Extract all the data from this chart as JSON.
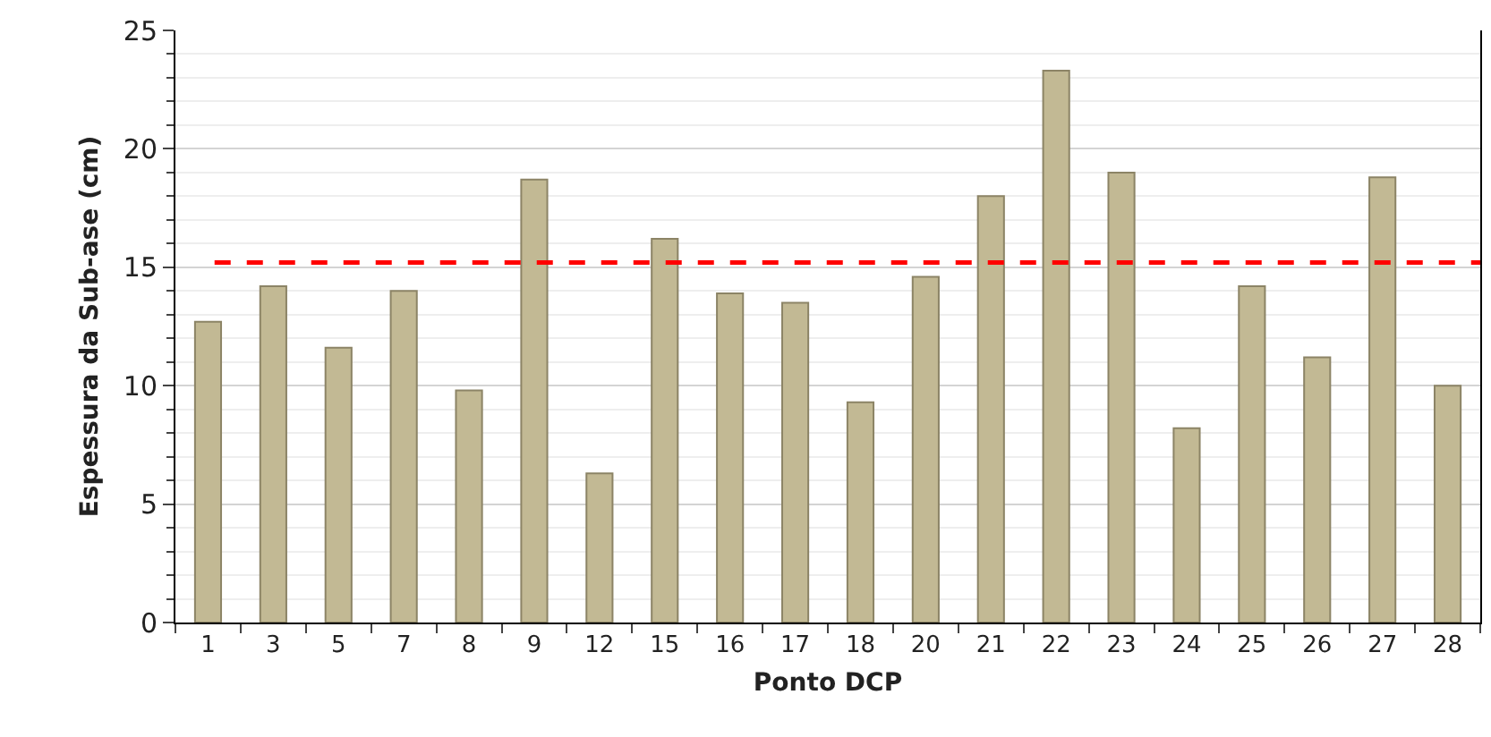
{
  "chart_data": {
    "type": "bar",
    "xlabel": "Ponto DCP",
    "ylabel": "Espessura da Sub-ase (cm)",
    "categories": [
      "1",
      "3",
      "5",
      "7",
      "8",
      "9",
      "12",
      "15",
      "16",
      "17",
      "18",
      "20",
      "21",
      "22",
      "23",
      "24",
      "25",
      "26",
      "27",
      "28"
    ],
    "values": [
      12.7,
      14.2,
      11.6,
      14.0,
      9.8,
      18.7,
      6.3,
      16.2,
      13.9,
      13.5,
      9.3,
      14.6,
      18.0,
      23.3,
      19.0,
      8.2,
      14.2,
      11.2,
      18.8,
      10.0
    ],
    "color": "#c2b994",
    "ylim": [
      0,
      25
    ],
    "yticks": [
      0,
      5,
      10,
      15,
      20,
      25
    ],
    "grid": "y",
    "ref_lines": [
      {
        "axis": "y",
        "value": 15.2,
        "color": "#ff0000",
        "line_style": "dashed"
      }
    ]
  }
}
